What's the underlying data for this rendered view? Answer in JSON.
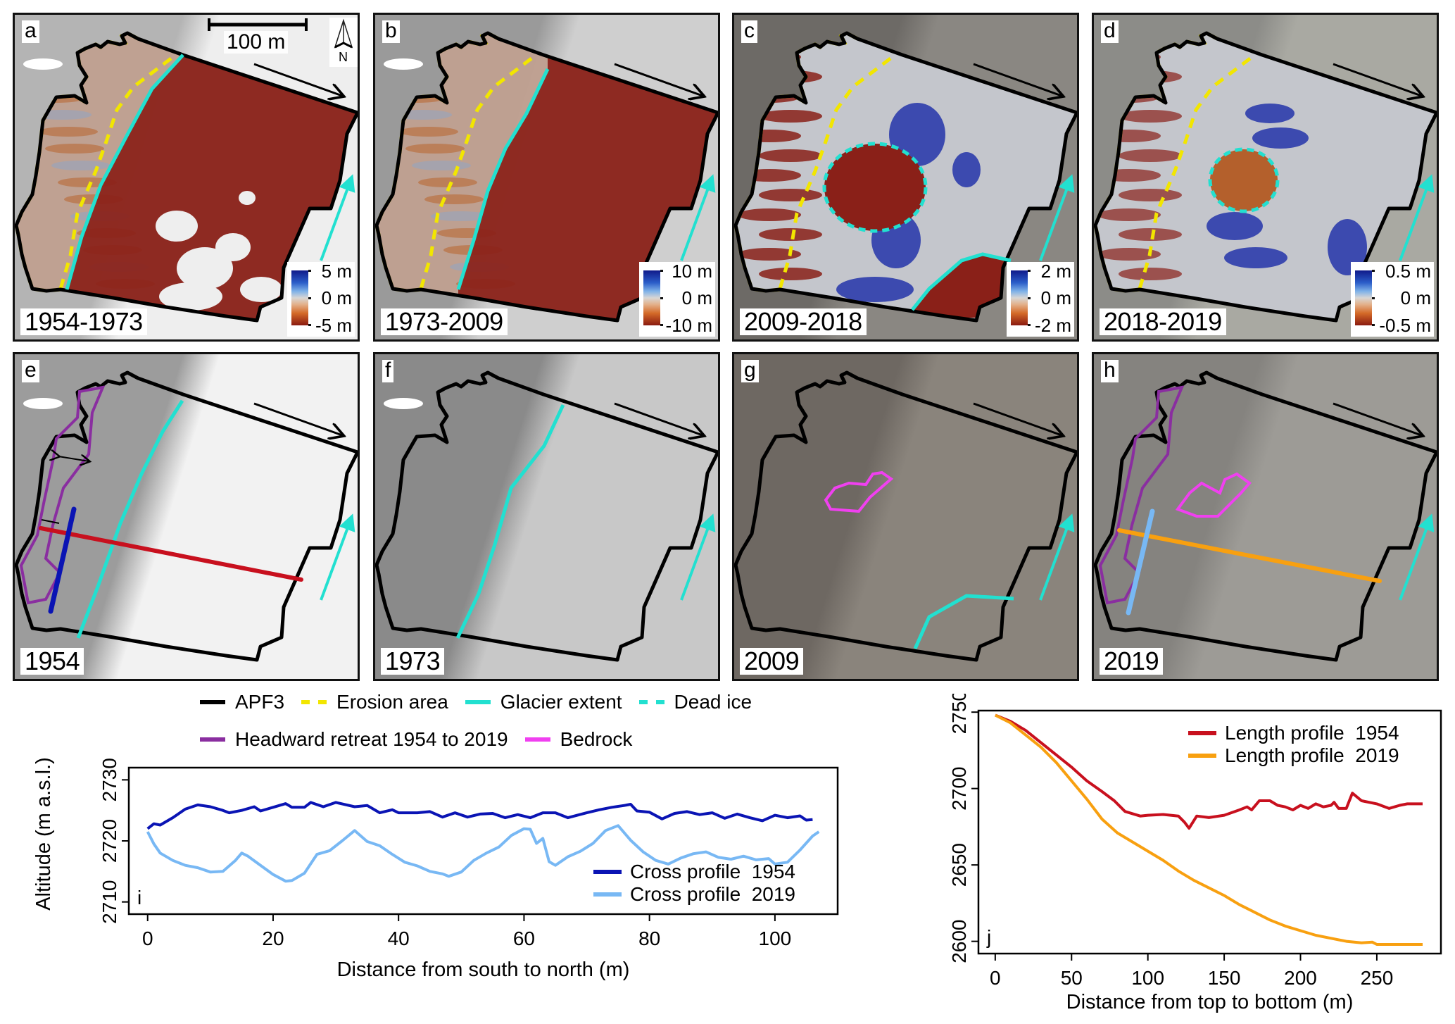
{
  "figure": {
    "scale_bar_label": "100 m",
    "north_label": "N",
    "panels": [
      {
        "id": "a",
        "label": "a",
        "period": "1954-1973",
        "colorbar": {
          "max": "5 m",
          "mid": "0 m",
          "min": "-5 m"
        }
      },
      {
        "id": "b",
        "label": "b",
        "period": "1973-2009",
        "colorbar": {
          "max": "10 m",
          "mid": "0 m",
          "min": "-10 m"
        }
      },
      {
        "id": "c",
        "label": "c",
        "period": "2009-2018",
        "colorbar": {
          "max": "2 m",
          "mid": "0 m",
          "min": "-2 m"
        }
      },
      {
        "id": "d",
        "label": "d",
        "period": "2018-2019",
        "colorbar": {
          "max": "0.5 m",
          "mid": "0 m",
          "min": "-0.5 m"
        }
      },
      {
        "id": "e",
        "label": "e",
        "period": "1954"
      },
      {
        "id": "f",
        "label": "f",
        "period": "1973"
      },
      {
        "id": "g",
        "label": "g",
        "period": "2009"
      },
      {
        "id": "h",
        "label": "h",
        "period": "2019"
      }
    ],
    "colors": {
      "apf3": "#000000",
      "erosion_area": "#f2e600",
      "glacier_extent": "#22e0d0",
      "dead_ice": "#22e0d0",
      "headward_retreat": "#8a2ea0",
      "bedrock": "#f040f0",
      "cross_1954": "#0a14b4",
      "cross_2019": "#78b8f4",
      "length_1954": "#c8101e",
      "length_2019": "#f8a010",
      "dod_loss": "#8a2018",
      "dod_gain": "#1a2aa8"
    },
    "legend": {
      "row1": [
        {
          "label": "APF3",
          "style": "solid",
          "color_key": "apf3"
        },
        {
          "label": "Erosion area",
          "style": "dash",
          "color_key": "erosion_area"
        },
        {
          "label": "Glacier extent",
          "style": "solid",
          "color_key": "glacier_extent"
        },
        {
          "label": "Dead ice",
          "style": "dash",
          "color_key": "dead_ice"
        }
      ],
      "row2": [
        {
          "label": "Headward retreat 1954 to 2019",
          "style": "solid",
          "color_key": "headward_retreat"
        },
        {
          "label": "Bedrock",
          "style": "solid",
          "color_key": "bedrock"
        }
      ]
    }
  },
  "chart_data": [
    {
      "id": "i",
      "type": "line",
      "panel_label": "i",
      "title": "",
      "xlabel": "Distance from south to north (m)",
      "ylabel": "Altitude (m a.s.l.)",
      "xlim": [
        -3,
        110
      ],
      "ylim": [
        2708,
        2732
      ],
      "xticks": [
        0,
        20,
        40,
        60,
        80,
        100
      ],
      "yticks": [
        2710,
        2720,
        2730
      ],
      "legend_position": "bottom-right",
      "grid": false,
      "series": [
        {
          "name": "Cross profile  1954",
          "color": "#0a14b4",
          "x": [
            0,
            1,
            2,
            4,
            6,
            8,
            10,
            12,
            13,
            15,
            17,
            18,
            20,
            22,
            23,
            25,
            26,
            28,
            30,
            33,
            35,
            37,
            39,
            40,
            43,
            45,
            47,
            49,
            51,
            53,
            55,
            57,
            59,
            61,
            63,
            65,
            67,
            70,
            72,
            74,
            76,
            77,
            78,
            80,
            82,
            84,
            86,
            88,
            90,
            92,
            94,
            96,
            98,
            100,
            102,
            104,
            105,
            106
          ],
          "y": [
            2722.0,
            2722.8,
            2722.6,
            2723.8,
            2725.2,
            2725.9,
            2725.6,
            2725.0,
            2724.6,
            2725.0,
            2725.6,
            2724.9,
            2725.5,
            2726.1,
            2725.5,
            2725.5,
            2726.3,
            2725.6,
            2726.3,
            2725.6,
            2725.8,
            2724.6,
            2725.1,
            2724.6,
            2724.6,
            2724.8,
            2723.9,
            2724.6,
            2723.9,
            2724.4,
            2724.5,
            2723.8,
            2724.3,
            2723.8,
            2724.6,
            2724.6,
            2723.8,
            2724.6,
            2725.1,
            2725.5,
            2725.8,
            2726.0,
            2724.9,
            2724.7,
            2723.6,
            2724.5,
            2724.8,
            2724.3,
            2724.6,
            2723.7,
            2724.4,
            2723.8,
            2723.3,
            2724.2,
            2723.8,
            2724.1,
            2723.4,
            2723.5
          ]
        },
        {
          "name": "Cross profile  2019",
          "color": "#78b8f4",
          "x": [
            0,
            1,
            2,
            4,
            6,
            8,
            10,
            12,
            14,
            15,
            16,
            18,
            20,
            22,
            23,
            25,
            27,
            29,
            31,
            33,
            35,
            37,
            39,
            41,
            43,
            45,
            47,
            48,
            50,
            52,
            54,
            56,
            58,
            60,
            61,
            62,
            63,
            64,
            65,
            67,
            69,
            71,
            73,
            75,
            77,
            79,
            81,
            83,
            85,
            87,
            89,
            91,
            93,
            95,
            97,
            99,
            100,
            102,
            104,
            106,
            107
          ],
          "y": [
            2721.5,
            2719.5,
            2718.0,
            2716.8,
            2716.0,
            2715.6,
            2714.9,
            2715.0,
            2716.8,
            2718.0,
            2717.5,
            2716.0,
            2714.5,
            2713.4,
            2713.5,
            2714.7,
            2717.8,
            2718.4,
            2720.0,
            2721.7,
            2719.9,
            2719.2,
            2717.8,
            2716.5,
            2715.9,
            2715.0,
            2714.6,
            2714.2,
            2714.9,
            2716.8,
            2718.0,
            2719.0,
            2720.9,
            2722.0,
            2721.9,
            2719.6,
            2720.4,
            2716.6,
            2716.0,
            2717.4,
            2718.3,
            2719.6,
            2721.7,
            2722.5,
            2720.1,
            2718.2,
            2716.8,
            2716.2,
            2717.2,
            2717.9,
            2718.2,
            2717.3,
            2717.0,
            2717.5,
            2716.9,
            2717.1,
            2716.2,
            2716.5,
            2718.5,
            2720.8,
            2721.5
          ]
        }
      ]
    },
    {
      "id": "j",
      "type": "line",
      "panel_label": "j",
      "title": "",
      "xlabel": "Distance from top to bottom (m)",
      "ylabel": "Altitude (m a.s.l.)",
      "xlim": [
        -11,
        292
      ],
      "ylim": [
        2592,
        2751
      ],
      "xticks": [
        0,
        50,
        100,
        150,
        200,
        250
      ],
      "yticks": [
        2600,
        2650,
        2700,
        2750
      ],
      "legend_position": "top-right",
      "grid": false,
      "series": [
        {
          "name": "Length profile  1954",
          "color": "#c8101e",
          "x": [
            0,
            5,
            10,
            20,
            30,
            40,
            50,
            60,
            70,
            78,
            85,
            95,
            100,
            110,
            120,
            124,
            127,
            132,
            140,
            150,
            160,
            165,
            168,
            173,
            180,
            185,
            190,
            195,
            200,
            205,
            210,
            215,
            220,
            222,
            225,
            230,
            234,
            240,
            250,
            258,
            265,
            270,
            280
          ],
          "y": [
            2748,
            2746,
            2744,
            2738,
            2730,
            2722,
            2714,
            2705,
            2698,
            2692,
            2685,
            2682,
            2682.5,
            2683,
            2682,
            2678,
            2674,
            2682,
            2681,
            2682.5,
            2686,
            2688,
            2686,
            2692,
            2692,
            2689,
            2688,
            2686,
            2689,
            2687,
            2690,
            2688,
            2689,
            2691,
            2687,
            2687,
            2697,
            2692,
            2690,
            2687,
            2689,
            2690,
            2690
          ]
        },
        {
          "name": "Length profile  2019",
          "color": "#f8a010",
          "x": [
            0,
            10,
            20,
            30,
            40,
            50,
            60,
            70,
            80,
            90,
            100,
            110,
            120,
            130,
            140,
            150,
            160,
            170,
            180,
            190,
            200,
            210,
            220,
            230,
            240,
            247,
            250,
            260,
            270,
            280
          ],
          "y": [
            2748,
            2743,
            2735,
            2727,
            2717,
            2705,
            2693,
            2680,
            2671,
            2665,
            2659,
            2653,
            2646,
            2640,
            2635,
            2630,
            2624,
            2619,
            2614,
            2610,
            2607,
            2604,
            2602,
            2600,
            2599,
            2599.5,
            2598,
            2598,
            2598,
            2598
          ]
        }
      ]
    }
  ]
}
